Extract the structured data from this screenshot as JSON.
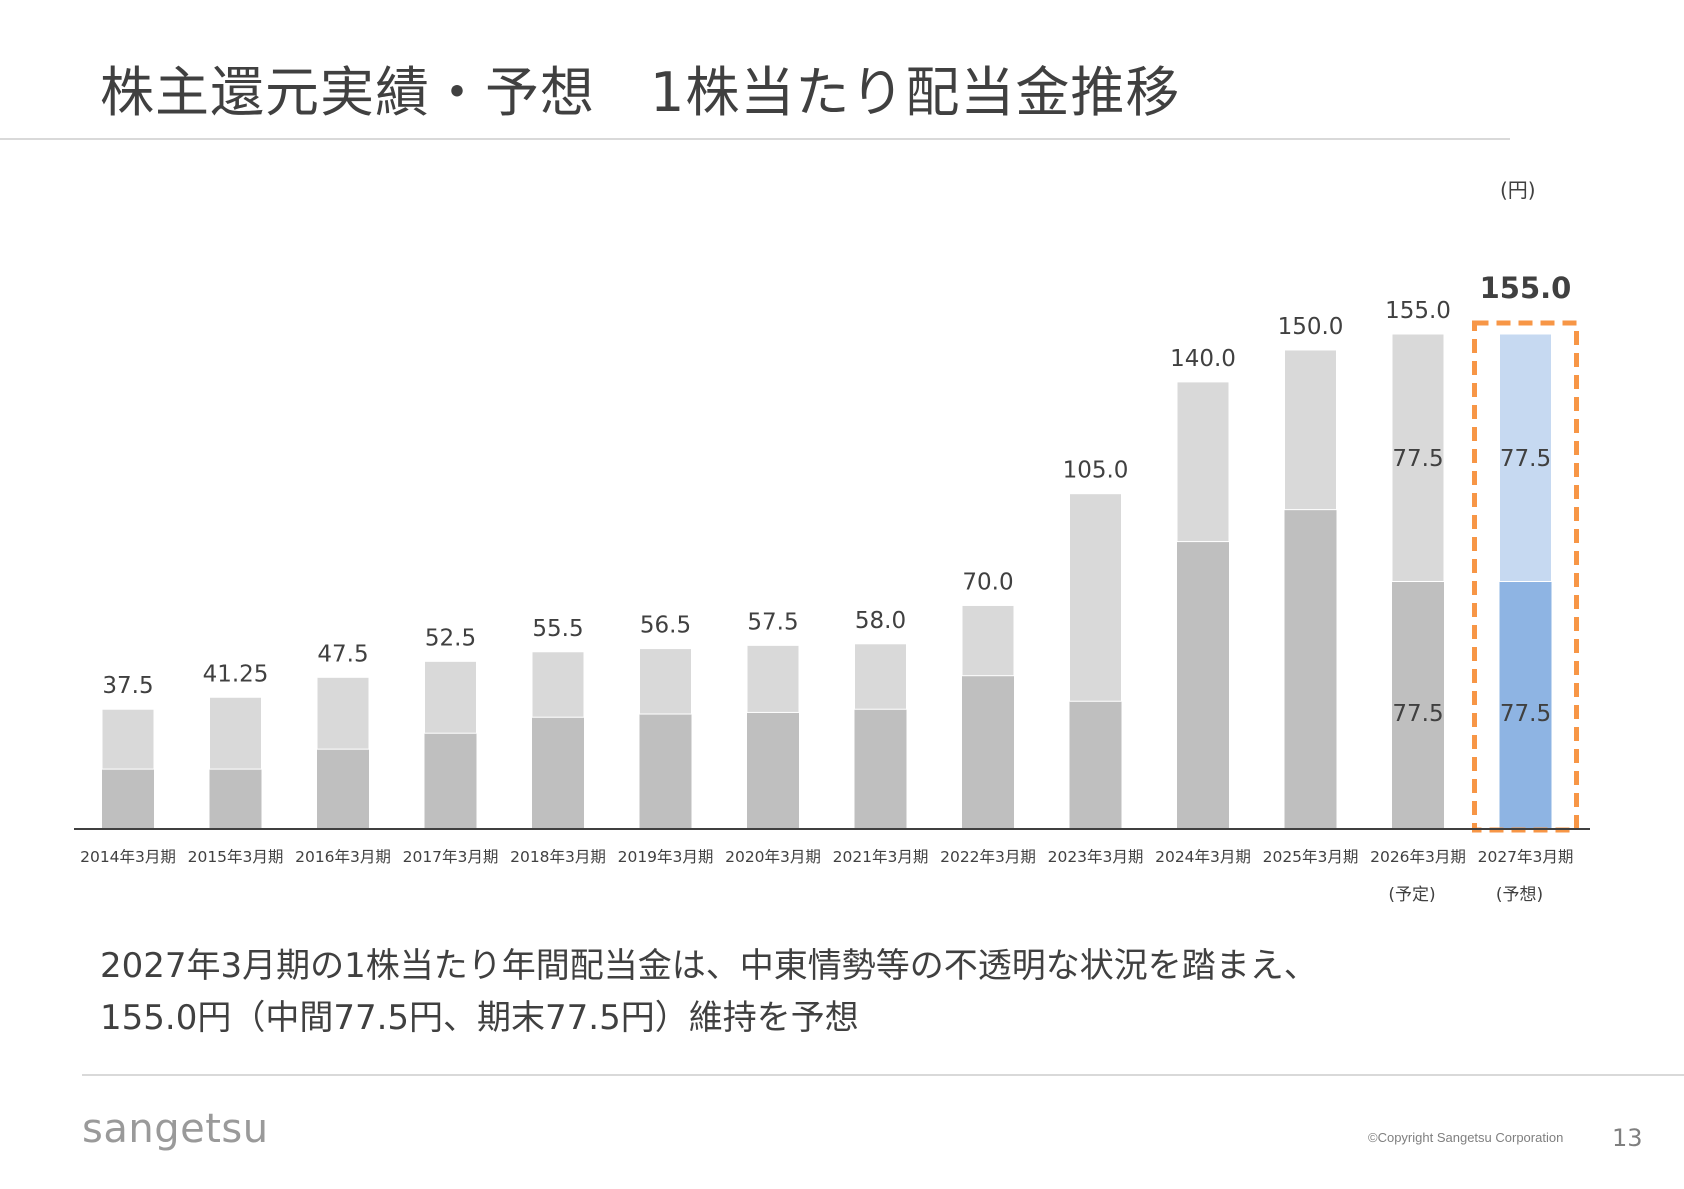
{
  "slide": {
    "title": "株主還元実績・予想　1株当たり配当金推移",
    "unit": "(円)",
    "summary_line1": "2027年3月期の1株当たり年間配当金は、中東情勢等の不透明な状況を踏まえ、",
    "summary_line2": "155.0円（中間77.5円、期末77.5円）維持を予想",
    "logo_text": "sangetsu",
    "copyright": "©Copyright Sangetsu Corporation",
    "page_number": "13"
  },
  "chart_data": {
    "type": "bar",
    "stacked": true,
    "categories": [
      "2014年3月期",
      "2015年3月期",
      "2016年3月期",
      "2017年3月期",
      "2018年3月期",
      "2019年3月期",
      "2020年3月期",
      "2021年3月期",
      "2022年3月期",
      "2023年3月期",
      "2024年3月期",
      "2025年3月期",
      "2026年3月期",
      "2027年3月期"
    ],
    "category_notes": [
      "",
      "",
      "",
      "",
      "",
      "",
      "",
      "",
      "",
      "",
      "",
      "",
      "(予定)",
      "(予想)"
    ],
    "series": [
      {
        "values": [
          18.75,
          18.75,
          25.0,
          30.0,
          35.0,
          36.0,
          36.5,
          37.5,
          48.0,
          40.0,
          90.0,
          100.0,
          77.5,
          77.5
        ]
      },
      {
        "values": [
          18.75,
          22.5,
          22.5,
          22.5,
          20.5,
          20.5,
          21.0,
          20.5,
          22.0,
          65.0,
          50.0,
          50.0,
          77.5,
          77.5
        ]
      }
    ],
    "total_labels": [
      "37.5",
      "41.25",
      "47.5",
      "52.5",
      "55.5",
      "56.5",
      "57.5",
      "58.0",
      "70.0",
      "105.0",
      "140.0",
      "150.0",
      "155.0",
      "155.0"
    ],
    "segment_labels": [
      {
        "index": 12,
        "bottom": "77.5",
        "top": "77.5"
      },
      {
        "index": 13,
        "bottom": "77.5",
        "top": "77.5"
      }
    ],
    "highlight_index": 13,
    "ylim": [
      0,
      155
    ],
    "colors": {
      "bottom": "#bfbfbf",
      "top": "#d9d9d9",
      "highlight_bottom": "#8eb4e3",
      "highlight_top": "#c6d9f1",
      "highlight_border": "#f79646",
      "axis": "#404040"
    }
  }
}
